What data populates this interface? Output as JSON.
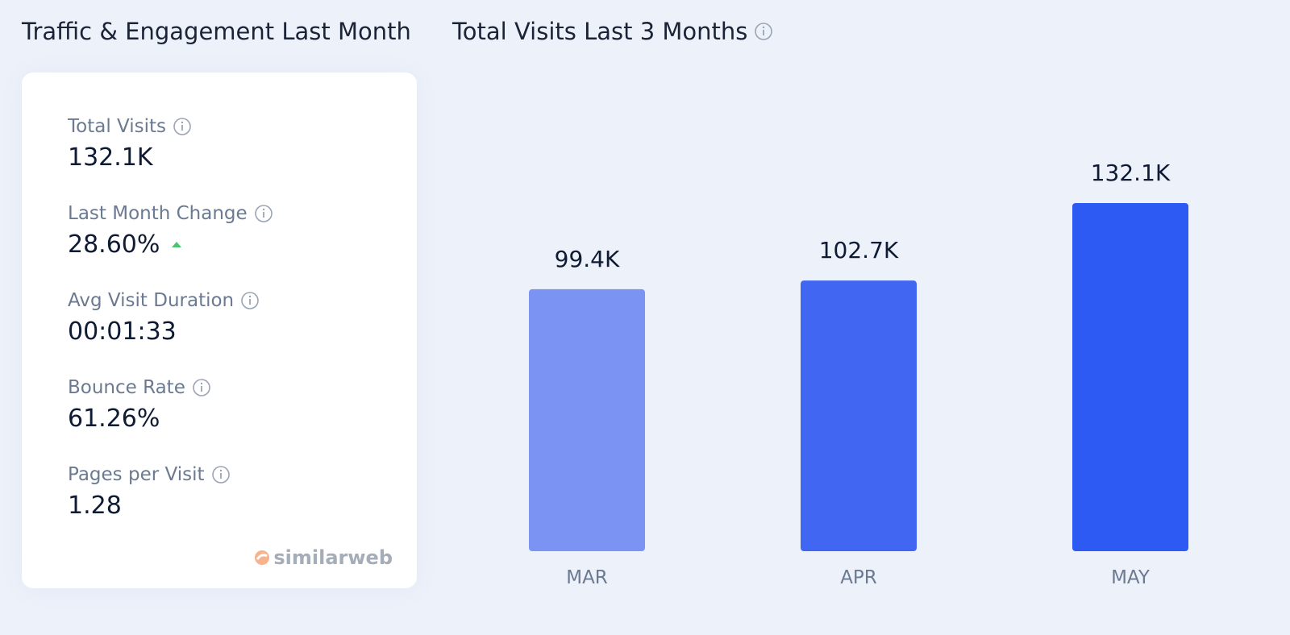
{
  "panel": {
    "title": "Traffic & Engagement Last Month",
    "metrics": [
      {
        "label": "Total Visits",
        "value": "132.1K"
      },
      {
        "label": "Last Month Change",
        "value": "28.60%"
      },
      {
        "label": "Avg Visit Duration",
        "value": "00:01:33"
      },
      {
        "label": "Bounce Rate",
        "value": "61.26%"
      },
      {
        "label": "Pages per Visit",
        "value": "1.28"
      }
    ],
    "brand": "similarweb"
  },
  "chart_data": {
    "type": "bar",
    "title": "Total Visits Last 3 Months",
    "categories": [
      "MAR",
      "APR",
      "MAY"
    ],
    "values": [
      99400,
      102700,
      132100
    ],
    "value_labels": [
      "99.4K",
      "102.7K",
      "132.1K"
    ],
    "colors": [
      "#7b94f4",
      "#4167f2",
      "#2d5af2"
    ]
  }
}
